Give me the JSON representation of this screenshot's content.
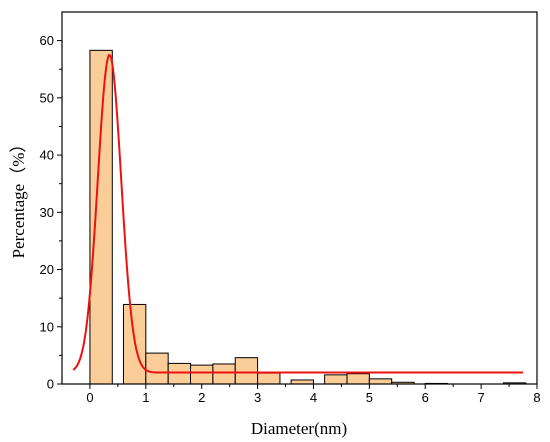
{
  "chart_data": {
    "type": "bar",
    "xlabel": "Diameter(nm)",
    "ylabel": "Percentage（%）",
    "xlim": [
      -0.5,
      8
    ],
    "ylim": [
      0,
      65
    ],
    "x_ticks": [
      "0",
      "1",
      "2",
      "3",
      "4",
      "5",
      "6",
      "7",
      "8"
    ],
    "y_ticks": [
      "0",
      "10",
      "20",
      "30",
      "40",
      "50",
      "60"
    ],
    "bar_width": 0.4,
    "bins": [
      {
        "x": 0.2,
        "value": 58.3
      },
      {
        "x": 0.8,
        "value": 13.9
      },
      {
        "x": 1.2,
        "value": 5.4
      },
      {
        "x": 1.6,
        "value": 3.6
      },
      {
        "x": 2.0,
        "value": 3.3
      },
      {
        "x": 2.4,
        "value": 3.5
      },
      {
        "x": 2.8,
        "value": 4.6
      },
      {
        "x": 3.2,
        "value": 1.9
      },
      {
        "x": 3.8,
        "value": 0.7
      },
      {
        "x": 4.4,
        "value": 1.6
      },
      {
        "x": 4.8,
        "value": 1.8
      },
      {
        "x": 5.2,
        "value": 0.9
      },
      {
        "x": 5.6,
        "value": 0.3
      },
      {
        "x": 6.2,
        "value": 0.1
      },
      {
        "x": 7.6,
        "value": 0.2
      }
    ],
    "fit_curve": {
      "type": "gaussian",
      "baseline": 2.0,
      "amplitude": 55.5,
      "center": 0.35,
      "sigma": 0.21,
      "x_range": [
        -0.3,
        7.75
      ]
    },
    "colors": {
      "bar_fill": "#fbcd99",
      "bar_stroke": "#000000",
      "curve": "#ee1111",
      "axis": "#000000"
    }
  }
}
